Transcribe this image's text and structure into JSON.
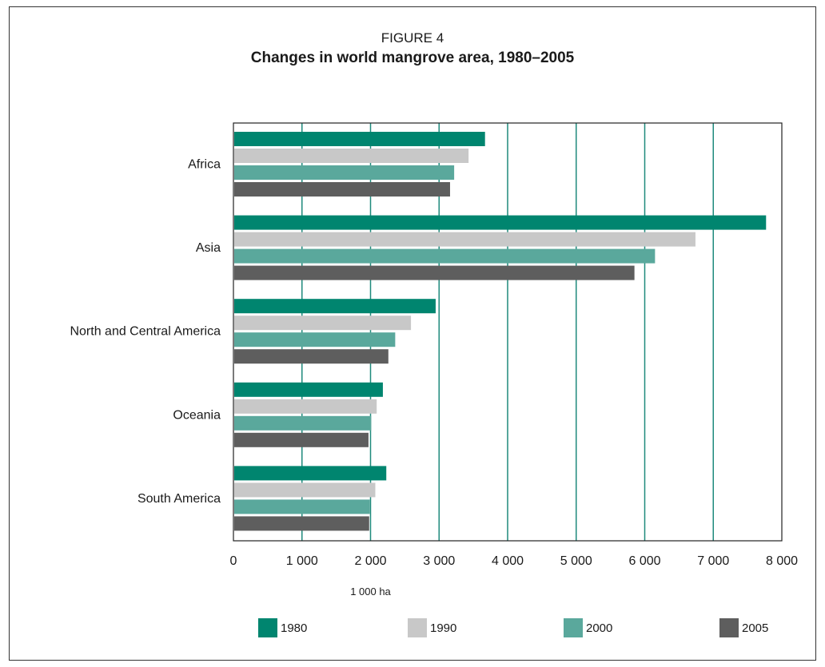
{
  "figure": {
    "label": "FIGURE 4",
    "title": "Changes in world mangrove area, 1980–2005"
  },
  "chart_data": {
    "type": "bar",
    "orientation": "horizontal",
    "title": "Changes in world mangrove area, 1980–2005",
    "xlabel": "1 000 ha",
    "ylabel": "",
    "xlim": [
      0,
      8000
    ],
    "grid": true,
    "legend_position": "bottom",
    "categories": [
      "Africa",
      "Asia",
      "North and Central America",
      "Oceania",
      "South America"
    ],
    "x_ticks": [
      "0",
      "1 000",
      "2 000",
      "3 000",
      "4 000",
      "5 000",
      "6 000",
      "7 000",
      "8 000"
    ],
    "series": [
      {
        "name": "1980",
        "color": "#00856f",
        "values": [
          3670,
          7770,
          2950,
          2180,
          2230
        ]
      },
      {
        "name": "1990",
        "color": "#c8c8c8",
        "values": [
          3430,
          6740,
          2590,
          2090,
          2070
        ]
      },
      {
        "name": "2000",
        "color": "#5aa89c",
        "values": [
          3220,
          6150,
          2360,
          2010,
          1990
        ]
      },
      {
        "name": "2005",
        "color": "#5e5e5e",
        "values": [
          3160,
          5850,
          2260,
          1970,
          1980
        ]
      }
    ]
  }
}
